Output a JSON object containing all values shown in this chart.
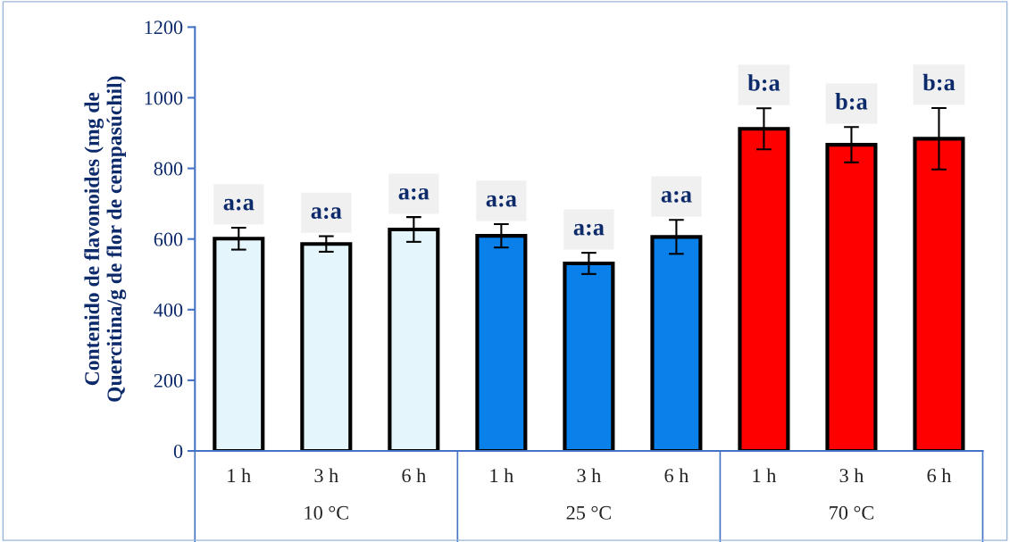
{
  "chart_data": {
    "type": "bar",
    "ylabel": "Contenido de flavonoides (mg de\nQuercitina/g de flor de cempasúchil)",
    "categories": [
      "1 h",
      "3 h",
      "6 h",
      "1 h",
      "3 h",
      "6 h",
      "1 h",
      "3 h",
      "6 h"
    ],
    "values": [
      601,
      586,
      627,
      609,
      531,
      606,
      912,
      867,
      884
    ],
    "errors": [
      31,
      22,
      35,
      33,
      30,
      48,
      58,
      50,
      87
    ],
    "colors": [
      "#e4f6fc",
      "#e4f6fc",
      "#e4f6fc",
      "#0a80ea",
      "#0a80ea",
      "#0a80ea",
      "#ff0000",
      "#ff0000",
      "#ff0000"
    ],
    "value_labels": [
      "a:a",
      "a:a",
      "a:a",
      "a:a",
      "a:a",
      "a:a",
      "b:a",
      "b:a",
      "b:a"
    ],
    "annotations": [
      "10 °C",
      "25 °C",
      "70 °C"
    ],
    "ylim": [
      0,
      1200
    ],
    "yticks": [
      0,
      200,
      400,
      600,
      800,
      1000,
      1200
    ],
    "grid": false,
    "legend": false
  }
}
